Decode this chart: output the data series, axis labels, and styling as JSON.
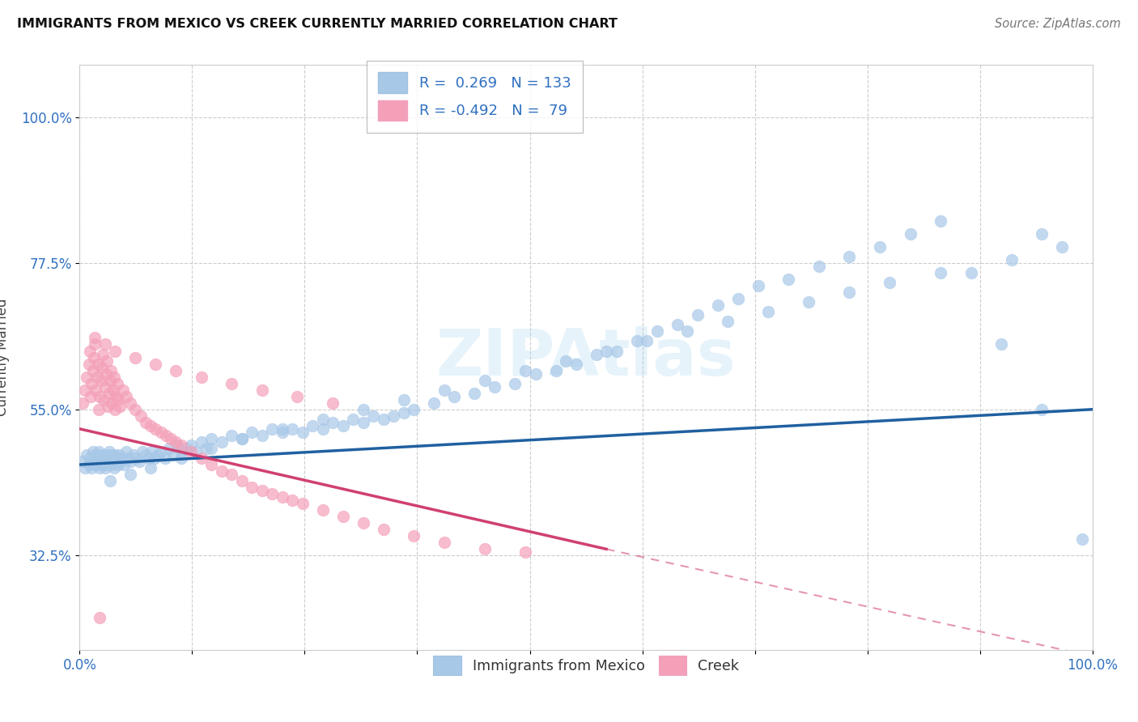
{
  "title": "IMMIGRANTS FROM MEXICO VS CREEK CURRENTLY MARRIED CORRELATION CHART",
  "source": "Source: ZipAtlas.com",
  "ylabel": "Currently Married",
  "xlim": [
    0.0,
    100.0
  ],
  "ylim": [
    18.0,
    108.0
  ],
  "yticks": [
    32.5,
    55.0,
    77.5,
    100.0
  ],
  "ytick_labels": [
    "32.5%",
    "55.0%",
    "77.5%",
    "100.0%"
  ],
  "xtick_labels": [
    "0.0%",
    "",
    "",
    "",
    "",
    "",
    "",
    "",
    "",
    "100.0%"
  ],
  "xtick_pos": [
    0,
    11.11,
    22.22,
    33.33,
    44.44,
    55.56,
    66.67,
    77.78,
    88.89,
    100.0
  ],
  "blue_color": "#a8c8e8",
  "pink_color": "#f4a0b8",
  "blue_line_color": "#2060a0",
  "pink_line_color": "#d04070",
  "r_blue": 0.269,
  "n_blue": 133,
  "r_pink": -0.492,
  "n_pink": 79,
  "legend_label_blue": "Immigrants from Mexico",
  "legend_label_pink": "Creek",
  "blue_line_x0": 0.0,
  "blue_line_y0": 46.5,
  "blue_line_x1": 100.0,
  "blue_line_y1": 55.0,
  "pink_line_x0": 0.0,
  "pink_line_y0": 52.0,
  "pink_line_x1": 52.0,
  "pink_line_y1": 33.5,
  "pink_dash_x1": 100.0,
  "pink_dash_y1": 17.0,
  "blue_x": [
    0.3,
    0.5,
    0.7,
    0.9,
    1.0,
    1.2,
    1.3,
    1.4,
    1.5,
    1.6,
    1.7,
    1.8,
    1.9,
    2.0,
    2.1,
    2.2,
    2.3,
    2.4,
    2.5,
    2.6,
    2.7,
    2.8,
    2.9,
    3.0,
    3.1,
    3.2,
    3.3,
    3.4,
    3.5,
    3.6,
    3.7,
    3.8,
    3.9,
    4.0,
    4.2,
    4.4,
    4.6,
    4.8,
    5.0,
    5.3,
    5.6,
    5.9,
    6.2,
    6.5,
    6.8,
    7.1,
    7.4,
    7.7,
    8.0,
    8.4,
    8.8,
    9.2,
    9.6,
    10.0,
    10.5,
    11.0,
    11.5,
    12.0,
    12.5,
    13.0,
    14.0,
    15.0,
    16.0,
    17.0,
    18.0,
    19.0,
    20.0,
    21.0,
    22.0,
    23.0,
    24.0,
    25.0,
    26.0,
    27.0,
    28.0,
    29.0,
    30.0,
    31.0,
    32.0,
    33.0,
    35.0,
    37.0,
    39.0,
    41.0,
    43.0,
    45.0,
    47.0,
    49.0,
    51.0,
    53.0,
    55.0,
    57.0,
    59.0,
    61.0,
    63.0,
    65.0,
    67.0,
    70.0,
    73.0,
    76.0,
    79.0,
    82.0,
    85.0,
    88.0,
    92.0,
    95.0,
    97.0,
    3.0,
    5.0,
    7.0,
    10.0,
    13.0,
    16.0,
    20.0,
    24.0,
    28.0,
    32.0,
    36.0,
    40.0,
    44.0,
    48.0,
    52.0,
    56.0,
    60.0,
    64.0,
    68.0,
    72.0,
    76.0,
    80.0,
    85.0,
    91.0,
    95.0,
    99.0
  ],
  "blue_y": [
    47.0,
    46.0,
    48.0,
    46.5,
    47.5,
    46.0,
    48.5,
    47.0,
    46.5,
    48.0,
    47.5,
    46.5,
    48.5,
    46.0,
    47.0,
    48.0,
    46.5,
    47.5,
    46.0,
    48.0,
    47.0,
    46.5,
    48.5,
    47.0,
    46.5,
    48.0,
    47.5,
    46.0,
    48.0,
    47.0,
    47.5,
    46.5,
    48.0,
    47.0,
    47.5,
    46.5,
    48.5,
    47.5,
    47.0,
    48.0,
    47.5,
    47.0,
    48.5,
    48.0,
    47.5,
    48.5,
    47.5,
    48.0,
    48.5,
    47.5,
    49.0,
    48.0,
    49.5,
    48.5,
    49.0,
    49.5,
    48.5,
    50.0,
    49.0,
    50.5,
    50.0,
    51.0,
    50.5,
    51.5,
    51.0,
    52.0,
    51.5,
    52.0,
    51.5,
    52.5,
    52.0,
    53.0,
    52.5,
    53.5,
    53.0,
    54.0,
    53.5,
    54.0,
    54.5,
    55.0,
    56.0,
    57.0,
    57.5,
    58.5,
    59.0,
    60.5,
    61.0,
    62.0,
    63.5,
    64.0,
    65.5,
    67.0,
    68.0,
    69.5,
    71.0,
    72.0,
    74.0,
    75.0,
    77.0,
    78.5,
    80.0,
    82.0,
    84.0,
    76.0,
    78.0,
    82.0,
    80.0,
    44.0,
    45.0,
    46.0,
    47.5,
    49.0,
    50.5,
    52.0,
    53.5,
    55.0,
    56.5,
    58.0,
    59.5,
    61.0,
    62.5,
    64.0,
    65.5,
    67.0,
    68.5,
    70.0,
    71.5,
    73.0,
    74.5,
    76.0,
    65.0,
    55.0,
    35.0
  ],
  "pink_x": [
    0.3,
    0.5,
    0.7,
    0.9,
    1.0,
    1.1,
    1.2,
    1.3,
    1.4,
    1.5,
    1.6,
    1.7,
    1.8,
    1.9,
    2.0,
    2.1,
    2.2,
    2.3,
    2.4,
    2.5,
    2.6,
    2.7,
    2.8,
    2.9,
    3.0,
    3.1,
    3.2,
    3.3,
    3.4,
    3.5,
    3.6,
    3.7,
    3.8,
    4.0,
    4.3,
    4.6,
    5.0,
    5.5,
    6.0,
    6.5,
    7.0,
    7.5,
    8.0,
    8.5,
    9.0,
    9.5,
    10.0,
    11.0,
    12.0,
    13.0,
    14.0,
    15.0,
    16.0,
    17.0,
    18.0,
    19.0,
    20.0,
    21.0,
    22.0,
    24.0,
    26.0,
    28.0,
    30.0,
    33.0,
    36.0,
    40.0,
    44.0,
    1.5,
    2.5,
    3.5,
    5.5,
    7.5,
    9.5,
    12.0,
    15.0,
    18.0,
    21.5,
    25.0,
    2.0
  ],
  "pink_y": [
    56.0,
    58.0,
    60.0,
    62.0,
    64.0,
    57.0,
    59.0,
    61.0,
    63.0,
    65.0,
    58.0,
    60.0,
    62.0,
    55.0,
    57.0,
    59.5,
    61.5,
    63.5,
    56.5,
    58.5,
    60.5,
    62.5,
    55.5,
    57.5,
    59.5,
    61.0,
    56.0,
    58.0,
    60.0,
    55.0,
    57.0,
    59.0,
    56.5,
    55.5,
    58.0,
    57.0,
    56.0,
    55.0,
    54.0,
    53.0,
    52.5,
    52.0,
    51.5,
    51.0,
    50.5,
    50.0,
    49.5,
    48.5,
    47.5,
    46.5,
    45.5,
    45.0,
    44.0,
    43.0,
    42.5,
    42.0,
    41.5,
    41.0,
    40.5,
    39.5,
    38.5,
    37.5,
    36.5,
    35.5,
    34.5,
    33.5,
    33.0,
    66.0,
    65.0,
    64.0,
    63.0,
    62.0,
    61.0,
    60.0,
    59.0,
    58.0,
    57.0,
    56.0,
    23.0
  ]
}
